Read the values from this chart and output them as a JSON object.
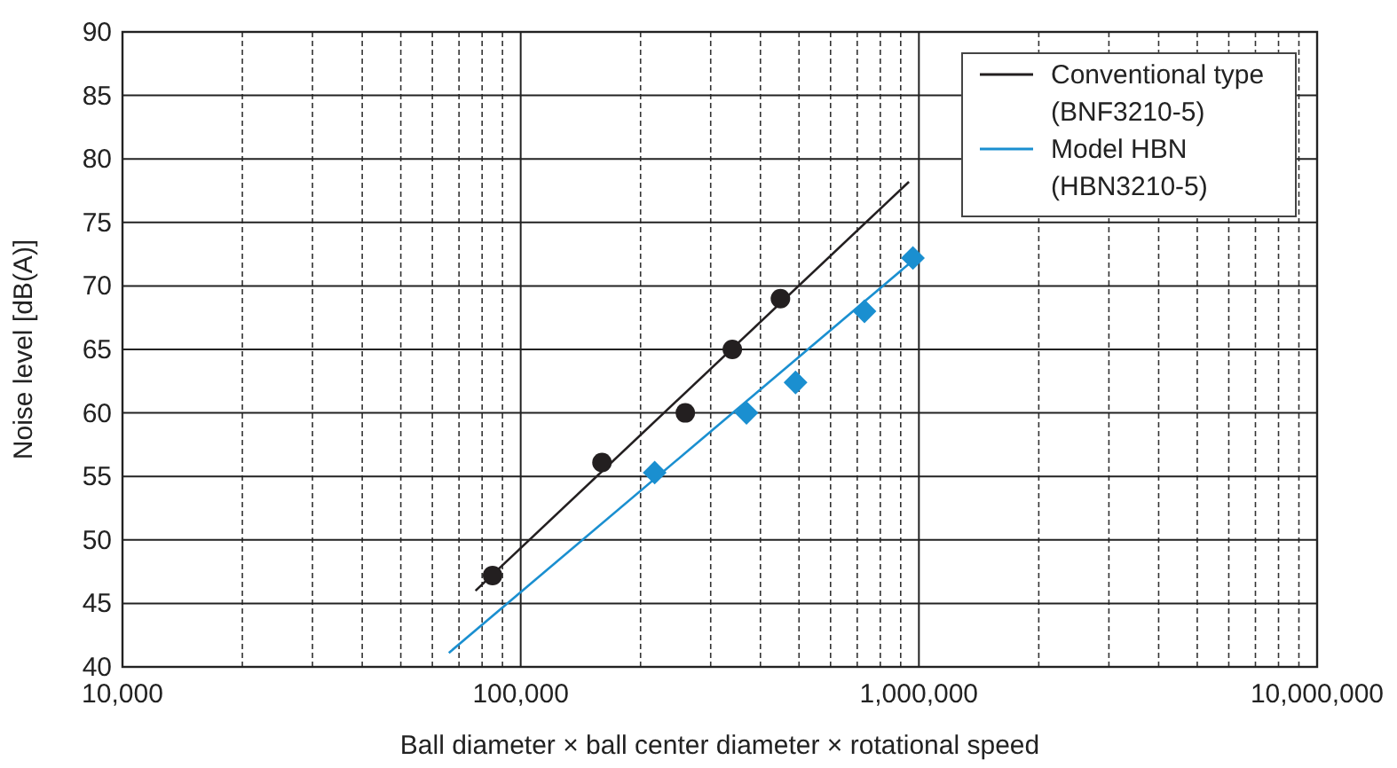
{
  "chart_data": {
    "type": "scatter",
    "xlabel": "Ball diameter × ball center diameter × rotational speed",
    "ylabel": "Noise level [dB(A)]",
    "log": "x",
    "xlim": [
      10000,
      10000000
    ],
    "ylim": [
      40,
      90
    ],
    "xticks": [
      {
        "value": 10000,
        "label": "10,000"
      },
      {
        "value": 20000,
        "label": null
      },
      {
        "value": 30000,
        "label": null
      },
      {
        "value": 40000,
        "label": null
      },
      {
        "value": 50000,
        "label": null
      },
      {
        "value": 60000,
        "label": null
      },
      {
        "value": 70000,
        "label": null
      },
      {
        "value": 80000,
        "label": null
      },
      {
        "value": 90000,
        "label": null
      },
      {
        "value": 100000,
        "label": "100,000"
      },
      {
        "value": 200000,
        "label": null
      },
      {
        "value": 300000,
        "label": null
      },
      {
        "value": 400000,
        "label": null
      },
      {
        "value": 500000,
        "label": null
      },
      {
        "value": 600000,
        "label": null
      },
      {
        "value": 700000,
        "label": null
      },
      {
        "value": 800000,
        "label": null
      },
      {
        "value": 900000,
        "label": null
      },
      {
        "value": 1000000,
        "label": "1,000,000"
      },
      {
        "value": 2000000,
        "label": null
      },
      {
        "value": 3000000,
        "label": null
      },
      {
        "value": 4000000,
        "label": null
      },
      {
        "value": 5000000,
        "label": null
      },
      {
        "value": 6000000,
        "label": null
      },
      {
        "value": 7000000,
        "label": null
      },
      {
        "value": 8000000,
        "label": null
      },
      {
        "value": 9000000,
        "label": null
      },
      {
        "value": 10000000,
        "label": "10,000,000"
      }
    ],
    "yticks": [
      40,
      45,
      50,
      55,
      60,
      65,
      70,
      75,
      80,
      85,
      90
    ],
    "grid": true,
    "legend": "top right",
    "series": [
      {
        "name": "Conventional type\n(BNF3210-5)",
        "type": "line",
        "color": "#231f20",
        "x": [
          77000,
          944000
        ],
        "values": [
          46,
          78.2
        ],
        "marker": "none"
      },
      {
        "name": "Model HBN\n(HBN3210-5)",
        "type": "line",
        "color": "#1a8fd0",
        "x": [
          66000,
          966000
        ],
        "values": [
          41.1,
          72.0
        ],
        "marker": "none"
      },
      {
        "color": "#231f20",
        "marker": "circle",
        "x": [
          85000,
          160000,
          259000,
          340000,
          449000
        ],
        "values": [
          47.2,
          56.1,
          60,
          65,
          69
        ]
      },
      {
        "color": "#1a8fd0",
        "marker": "diamond",
        "x": [
          217000,
          369000,
          490000,
          730000,
          966000
        ],
        "values": [
          55.3,
          60,
          62.4,
          68,
          72.2
        ]
      }
    ]
  }
}
